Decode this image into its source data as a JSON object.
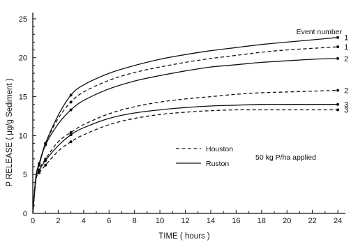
{
  "chart_data": {
    "type": "line",
    "title": "",
    "xlabel": "TIME ( hours )",
    "ylabel": "P  RELEASE ( μg/g Sediment )",
    "xlim": [
      0,
      24.6
    ],
    "ylim": [
      0,
      25.8
    ],
    "xticks": [
      0,
      2,
      4,
      6,
      8,
      10,
      12,
      14,
      16,
      18,
      20,
      22,
      24
    ],
    "yticks": [
      0,
      5,
      10,
      15,
      20,
      25
    ],
    "grid": false,
    "legend": {
      "placement": "bottom-center",
      "entries": [
        {
          "label": "Houston",
          "style": "dashed"
        },
        {
          "label": "Ruston",
          "style": "solid"
        }
      ]
    },
    "annotations": {
      "applied": "50 kg P/ha   applied",
      "event_header": "Event number"
    },
    "series": [
      {
        "name": "Ruston",
        "event": "1",
        "style": "solid",
        "x": [
          0,
          0.25,
          0.5,
          1,
          2,
          3,
          4,
          6,
          8,
          10,
          12,
          14,
          16,
          18,
          20,
          22,
          24
        ],
        "y": [
          0,
          4.8,
          6.4,
          9.0,
          12.6,
          15.2,
          16.5,
          18.0,
          19.0,
          19.8,
          20.4,
          20.9,
          21.3,
          21.7,
          22.0,
          22.3,
          22.6
        ],
        "markers": [
          0.5,
          1,
          3,
          24
        ]
      },
      {
        "name": "Houston",
        "event": "1",
        "style": "dashed",
        "x": [
          0,
          0.25,
          0.5,
          1,
          2,
          3,
          4,
          6,
          8,
          10,
          12,
          14,
          16,
          18,
          20,
          22,
          24
        ],
        "y": [
          0,
          4.8,
          6.2,
          9.0,
          12.2,
          14.3,
          15.6,
          17.1,
          18.1,
          18.8,
          19.4,
          19.9,
          20.3,
          20.7,
          21.0,
          21.2,
          21.4
        ],
        "markers": [
          0.5,
          1,
          3,
          24
        ]
      },
      {
        "name": "Ruston",
        "event": "2",
        "style": "solid",
        "x": [
          0,
          0.25,
          0.5,
          1,
          2,
          3,
          4,
          6,
          8,
          10,
          12,
          14,
          16,
          18,
          20,
          22,
          24
        ],
        "y": [
          0,
          4.8,
          6.2,
          8.8,
          11.5,
          13.3,
          14.5,
          16.0,
          17.0,
          17.7,
          18.3,
          18.8,
          19.1,
          19.4,
          19.6,
          19.8,
          19.9
        ],
        "markers": [
          0.5,
          1,
          3,
          24
        ]
      },
      {
        "name": "Houston",
        "event": "2",
        "style": "dashed",
        "x": [
          0,
          0.25,
          0.5,
          1,
          2,
          3,
          4,
          6,
          8,
          10,
          12,
          14,
          16,
          18,
          20,
          22,
          24
        ],
        "y": [
          0,
          4.5,
          5.6,
          7.0,
          9.2,
          10.4,
          11.4,
          12.8,
          13.7,
          14.3,
          14.7,
          15.0,
          15.3,
          15.5,
          15.6,
          15.7,
          15.8
        ],
        "markers": [
          0.5,
          1,
          3,
          24
        ]
      },
      {
        "name": "Ruston",
        "event": "3",
        "style": "solid",
        "x": [
          0,
          0.25,
          0.5,
          1,
          2,
          3,
          4,
          6,
          8,
          10,
          12,
          14,
          16,
          18,
          20,
          22,
          24
        ],
        "y": [
          0,
          4.5,
          5.5,
          6.8,
          8.7,
          10.1,
          11.0,
          12.2,
          12.9,
          13.3,
          13.6,
          13.8,
          13.9,
          14.0,
          14.0,
          14.0,
          14.0
        ],
        "markers": [
          0.5,
          1,
          3,
          24
        ]
      },
      {
        "name": "Houston",
        "event": "3",
        "style": "dashed",
        "x": [
          0,
          0.25,
          0.5,
          1,
          2,
          3,
          4,
          6,
          8,
          10,
          12,
          14,
          16,
          18,
          20,
          22,
          24
        ],
        "y": [
          0,
          4.3,
          5.2,
          6.2,
          8.0,
          9.2,
          10.1,
          11.4,
          12.2,
          12.7,
          13.0,
          13.2,
          13.3,
          13.3,
          13.3,
          13.3,
          13.3
        ],
        "markers": [
          0.5,
          1,
          3,
          24
        ]
      }
    ]
  }
}
